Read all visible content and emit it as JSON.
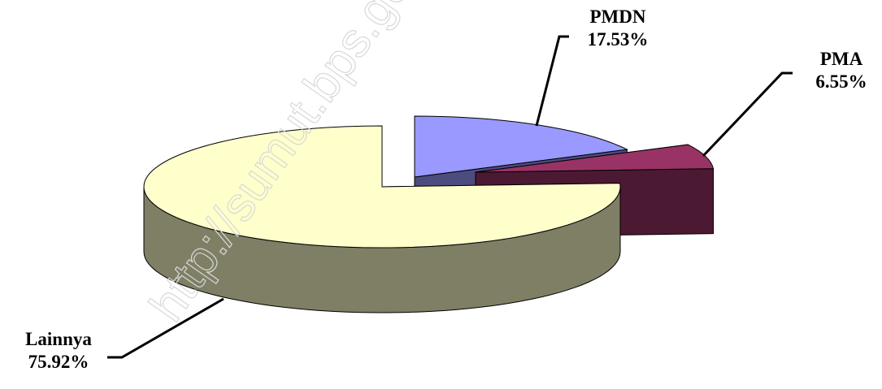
{
  "chart_data": {
    "type": "pie3d",
    "categories": [
      "PMDN",
      "PMA",
      "Lainnya"
    ],
    "values": [
      17.53,
      6.55,
      75.92
    ],
    "value_labels": [
      "17.53%",
      "6.55%",
      "75.92%"
    ],
    "colors": [
      "#9999ff",
      "#993366",
      "#ffffcc"
    ],
    "watermark": "http://sumut.bps.go.id"
  }
}
